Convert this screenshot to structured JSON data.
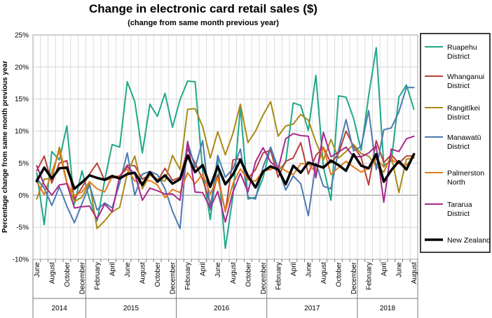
{
  "chart_data": {
    "type": "line",
    "title": "Change in electronic card retail sales ($)",
    "subtitle": "(change from same month previous year)",
    "ylabel": "Percentage change from same month previous year",
    "ylim": [
      -10,
      25
    ],
    "yticks": [
      -10,
      -5,
      0,
      5,
      10,
      15,
      20,
      25
    ],
    "ytick_labels": [
      "-10%",
      "-5%",
      "0%",
      "5%",
      "10%",
      "15%",
      "20%",
      "25%"
    ],
    "month_tick_labels": [
      "June",
      "August",
      "October",
      "December",
      "February",
      "April",
      "June",
      "August",
      "October",
      "December",
      "February",
      "April",
      "June",
      "August",
      "October",
      "December",
      "February",
      "April",
      "June",
      "August",
      "October",
      "December",
      "February",
      "April",
      "June",
      "August"
    ],
    "years": [
      "2014",
      "2015",
      "2016",
      "2017",
      "2018"
    ],
    "grid": true,
    "legend_position": "right",
    "x": [
      "2014-06",
      "2014-07",
      "2014-08",
      "2014-09",
      "2014-10",
      "2014-11",
      "2014-12",
      "2015-01",
      "2015-02",
      "2015-03",
      "2015-04",
      "2015-05",
      "2015-06",
      "2015-07",
      "2015-08",
      "2015-09",
      "2015-10",
      "2015-11",
      "2015-12",
      "2016-01",
      "2016-02",
      "2016-03",
      "2016-04",
      "2016-05",
      "2016-06",
      "2016-07",
      "2016-08",
      "2016-09",
      "2016-10",
      "2016-11",
      "2016-12",
      "2017-01",
      "2017-02",
      "2017-03",
      "2017-04",
      "2017-05",
      "2017-06",
      "2017-07",
      "2017-08",
      "2017-09",
      "2017-10",
      "2017-11",
      "2017-12",
      "2018-01",
      "2018-02",
      "2018-03",
      "2018-04",
      "2018-05",
      "2018-06",
      "2018-07",
      "2018-08"
    ],
    "series": [
      {
        "name": "Ruapehu District",
        "color": "#1fa888",
        "width": 2,
        "values": [
          3.5,
          -4.6,
          6.8,
          5.5,
          10.8,
          -1.4,
          3.8,
          -0.6,
          -4.0,
          2.3,
          7.9,
          7.5,
          17.7,
          14.6,
          6.6,
          14.2,
          12.3,
          15.9,
          10.6,
          14.9,
          17.8,
          17.7,
          3.7,
          -3.8,
          5.6,
          -8.3,
          -0.2,
          13.8,
          -0.6,
          -0.3,
          2.7,
          7.5,
          3.8,
          5.1,
          14.4,
          14.0,
          10.1,
          18.7,
          4.4,
          -0.8,
          15.5,
          15.3,
          12.0,
          7.0,
          15.5,
          23.0,
          4.7,
          5.3,
          15.3,
          17.2,
          13.4
        ]
      },
      {
        "name": "Whanganui District",
        "color": "#b5403a",
        "width": 2,
        "values": [
          3.8,
          6.1,
          1.9,
          5.0,
          5.4,
          -0.6,
          1.2,
          3.3,
          5.0,
          2.3,
          2.7,
          2.8,
          4.7,
          4.6,
          2.5,
          3.2,
          2.2,
          4.2,
          2.3,
          2.8,
          7.2,
          5.0,
          2.5,
          -1.4,
          3.2,
          -2.6,
          5.5,
          5.7,
          2.6,
          4.0,
          6.6,
          7.0,
          2.8,
          5.3,
          5.8,
          8.2,
          3.3,
          6.2,
          7.5,
          5.0,
          6.5,
          10.0,
          7.6,
          5.9,
          1.6,
          8.5,
          5.1,
          6.3,
          5.0,
          6.1,
          6.1
        ]
      },
      {
        "name": "Rangitīkei District",
        "color": "#a88a16",
        "width": 2,
        "values": [
          -0.6,
          2.5,
          2.6,
          7.5,
          2.0,
          -1.0,
          -0.3,
          2.0,
          -5.2,
          -4.0,
          -2.6,
          -1.9,
          3.4,
          6.1,
          1.0,
          3.2,
          2.5,
          2.2,
          6.2,
          4.0,
          13.4,
          13.5,
          10.7,
          5.8,
          9.9,
          6.3,
          9.6,
          14.2,
          8.2,
          10.0,
          12.5,
          14.6,
          9.2,
          10.8,
          11.1,
          12.6,
          11.7,
          8.3,
          5.5,
          8.7,
          5.8,
          6.8,
          7.9,
          6.5,
          6.1,
          4.5,
          3.6,
          6.2,
          0.4,
          5.6,
          5.8
        ]
      },
      {
        "name": "Manawatū District",
        "color": "#4d7ab0",
        "width": 2,
        "values": [
          2.6,
          1.1,
          -1.6,
          1.3,
          -1.7,
          -4.3,
          -1.3,
          1.6,
          -2.3,
          -1.2,
          -2.0,
          1.9,
          6.6,
          0.0,
          3.3,
          3.7,
          3.2,
          1.0,
          -2.5,
          -5.2,
          8.3,
          4.3,
          8.5,
          -2.3,
          6.2,
          2.8,
          4.1,
          7.2,
          -0.3,
          -0.6,
          4.4,
          7.5,
          4.2,
          0.8,
          3.0,
          1.8,
          -3.2,
          5.0,
          1.4,
          1.0,
          7.0,
          11.8,
          6.9,
          7.6,
          13.2,
          4.0,
          10.2,
          10.5,
          13.0,
          16.8,
          16.8
        ]
      },
      {
        "name": "Palmerston North",
        "color": "#e07b1d",
        "width": 2,
        "values": [
          2.1,
          0.1,
          3.6,
          6.9,
          1.8,
          0.0,
          0.5,
          2.1,
          1.0,
          0.5,
          2.9,
          3.0,
          4.1,
          2.2,
          2.0,
          2.3,
          1.6,
          -0.4,
          0.9,
          0.4,
          3.5,
          1.8,
          3.3,
          0.2,
          2.7,
          -2.5,
          1.8,
          4.1,
          2.4,
          2.2,
          3.8,
          4.0,
          4.6,
          3.8,
          3.2,
          4.9,
          4.9,
          3.6,
          7.5,
          3.2,
          4.3,
          5.3,
          4.4,
          3.6,
          4.2,
          5.7,
          4.4,
          5.6,
          4.9,
          4.7,
          6.0
        ]
      },
      {
        "name": "Tararua District",
        "color": "#a8288f",
        "width": 2,
        "values": [
          4.6,
          1.6,
          0.0,
          1.6,
          1.8,
          -2.0,
          -1.8,
          -1.7,
          -3.7,
          -1.4,
          -2.6,
          3.0,
          4.5,
          3.3,
          -0.8,
          1.1,
          0.7,
          0.2,
          0.2,
          -0.8,
          8.4,
          0.5,
          0.4,
          -2.0,
          0.6,
          -4.2,
          0.5,
          3.4,
          0.5,
          5.2,
          7.4,
          5.2,
          4.1,
          8.8,
          9.6,
          9.3,
          9.2,
          2.7,
          9.8,
          6.0,
          6.7,
          7.5,
          6.0,
          6.0,
          6.6,
          7.7,
          -1.1,
          7.2,
          6.8,
          8.8,
          9.2
        ]
      },
      {
        "name": "New Zealand",
        "color": "#000000",
        "width": 3.5,
        "values": [
          2.2,
          4.3,
          2.6,
          4.2,
          4.3,
          1.0,
          2.0,
          3.1,
          2.7,
          2.4,
          3.0,
          2.6,
          3.3,
          3.5,
          1.6,
          3.6,
          2.1,
          3.1,
          1.8,
          2.5,
          6.2,
          3.6,
          4.7,
          1.3,
          4.5,
          1.7,
          3.2,
          5.5,
          3.0,
          1.2,
          3.7,
          4.5,
          4.0,
          1.7,
          4.6,
          3.5,
          5.1,
          4.7,
          4.3,
          5.4,
          4.7,
          3.8,
          6.4,
          4.6,
          4.2,
          6.4,
          2.1,
          3.9,
          5.3,
          4.0,
          6.4
        ]
      }
    ]
  }
}
